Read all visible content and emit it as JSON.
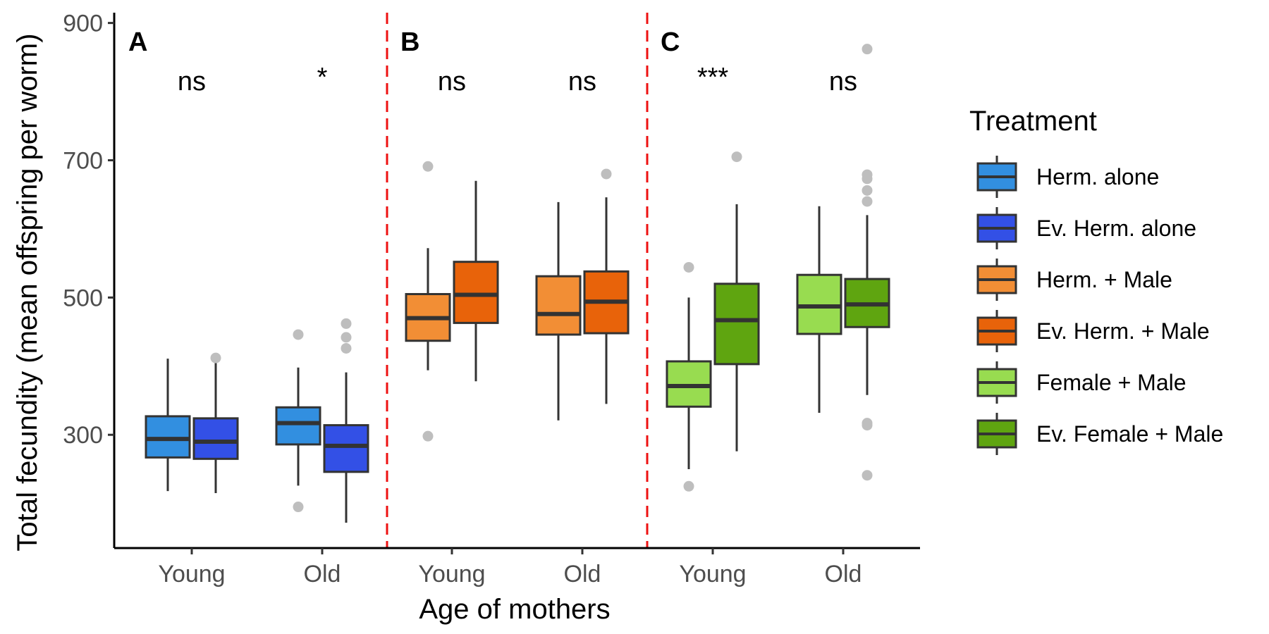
{
  "chart_data": {
    "type": "boxplot",
    "xlabel": "Age of mothers",
    "ylabel": "Total fecundity (mean offspring per worm)",
    "ylim": [
      135,
      915
    ],
    "yticks": [
      300,
      500,
      700,
      900
    ],
    "x_categories": [
      "Young",
      "Old",
      "Young",
      "Old",
      "Young",
      "Old"
    ],
    "panels": [
      {
        "label": "A",
        "significance": [
          "ns",
          "*"
        ]
      },
      {
        "label": "B",
        "significance": [
          "ns",
          "ns"
        ]
      },
      {
        "label": "C",
        "significance": [
          "***",
          "ns"
        ]
      }
    ],
    "legend": {
      "title": "Treatment",
      "placement": "right",
      "entries": [
        {
          "name": "Herm. alone",
          "color": "#328fe0"
        },
        {
          "name": "Ev. Herm. alone",
          "color": "#3350e6"
        },
        {
          "name": "Herm. + Male",
          "color": "#f28e35"
        },
        {
          "name": "Ev. Herm. + Male",
          "color": "#e8630a"
        },
        {
          "name": "Female + Male",
          "color": "#98dc50"
        },
        {
          "name": "Ev. Female + Male",
          "color": "#5fa510"
        }
      ]
    },
    "boxes": [
      {
        "group": "Young",
        "treatment": "Herm. alone",
        "whisker_low": 218,
        "q1": 267,
        "median": 294,
        "q3": 327,
        "whisker_high": 411,
        "outliers": []
      },
      {
        "group": "Young",
        "treatment": "Ev. Herm. alone",
        "whisker_low": 215,
        "q1": 265,
        "median": 290,
        "q3": 324,
        "whisker_high": 410,
        "outliers": [
          412
        ]
      },
      {
        "group": "Old",
        "treatment": "Herm. alone",
        "whisker_low": 226,
        "q1": 286,
        "median": 317,
        "q3": 340,
        "whisker_high": 398,
        "outliers": [
          195,
          446
        ]
      },
      {
        "group": "Old",
        "treatment": "Ev. Herm. alone",
        "whisker_low": 172,
        "q1": 246,
        "median": 284,
        "q3": 314,
        "whisker_high": 391,
        "outliers": [
          426,
          442,
          462
        ]
      },
      {
        "group": "Young",
        "treatment": "Herm. + Male",
        "whisker_low": 394,
        "q1": 437,
        "median": 470,
        "q3": 505,
        "whisker_high": 572,
        "outliers": [
          298,
          691
        ]
      },
      {
        "group": "Young",
        "treatment": "Ev. Herm. + Male",
        "whisker_low": 378,
        "q1": 463,
        "median": 504,
        "q3": 552,
        "whisker_high": 670,
        "outliers": []
      },
      {
        "group": "Old",
        "treatment": "Herm. + Male",
        "whisker_low": 321,
        "q1": 446,
        "median": 476,
        "q3": 531,
        "whisker_high": 639,
        "outliers": []
      },
      {
        "group": "Old",
        "treatment": "Ev. Herm. + Male",
        "whisker_low": 345,
        "q1": 448,
        "median": 494,
        "q3": 538,
        "whisker_high": 646,
        "outliers": [
          680
        ]
      },
      {
        "group": "Young",
        "treatment": "Female + Male",
        "whisker_low": 250,
        "q1": 341,
        "median": 371,
        "q3": 407,
        "whisker_high": 500,
        "outliers": [
          225,
          544
        ]
      },
      {
        "group": "Young",
        "treatment": "Ev. Female + Male",
        "whisker_low": 276,
        "q1": 403,
        "median": 467,
        "q3": 520,
        "whisker_high": 636,
        "outliers": [
          705
        ]
      },
      {
        "group": "Old",
        "treatment": "Female + Male",
        "whisker_low": 332,
        "q1": 447,
        "median": 487,
        "q3": 533,
        "whisker_high": 633,
        "outliers": []
      },
      {
        "group": "Old",
        "treatment": "Ev. Female + Male",
        "whisker_low": 358,
        "q1": 457,
        "median": 490,
        "q3": 527,
        "whisker_high": 620,
        "outliers": [
          241,
          314,
          317,
          640,
          656,
          673,
          679,
          862
        ]
      }
    ]
  }
}
